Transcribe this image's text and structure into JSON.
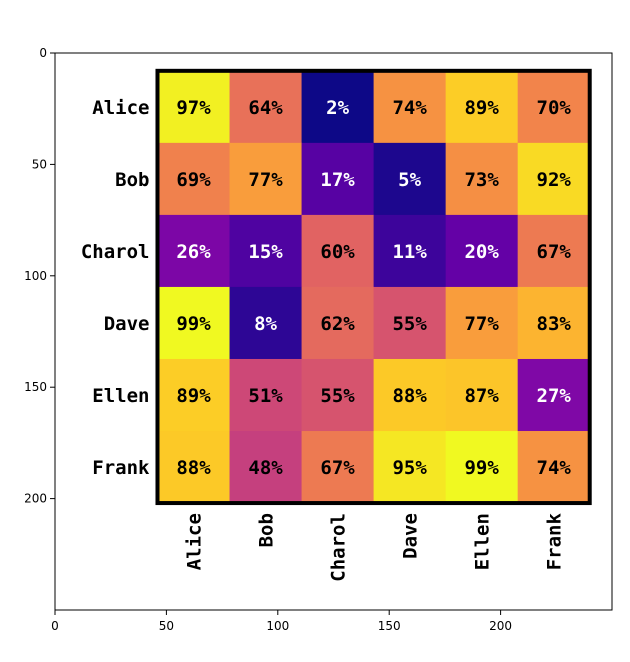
{
  "chart_data": {
    "type": "heatmap",
    "title": "",
    "xlabel": "",
    "ylabel": "",
    "row_labels": [
      "Alice",
      "Bob",
      "Charol",
      "Dave",
      "Ellen",
      "Frank"
    ],
    "col_labels": [
      "Alice",
      "Bob",
      "Charol",
      "Dave",
      "Ellen",
      "Frank"
    ],
    "values": [
      [
        97,
        64,
        2,
        74,
        89,
        70
      ],
      [
        69,
        77,
        17,
        5,
        73,
        92
      ],
      [
        26,
        15,
        60,
        11,
        20,
        67
      ],
      [
        99,
        8,
        62,
        55,
        77,
        83
      ],
      [
        89,
        51,
        55,
        88,
        87,
        27
      ],
      [
        88,
        48,
        67,
        95,
        99,
        74
      ]
    ],
    "value_suffix": "%",
    "colormap": "plasma",
    "x_axis": {
      "ticks": [
        0,
        50,
        100,
        150,
        200
      ],
      "range": [
        0,
        250
      ]
    },
    "y_axis": {
      "ticks": [
        0,
        50,
        100,
        150,
        200
      ],
      "range": [
        0,
        250
      ],
      "inverted": true
    },
    "grid": false,
    "label_colors": {
      "dark": "#000000",
      "light": "#ffffff"
    },
    "border_color": "#000000"
  }
}
